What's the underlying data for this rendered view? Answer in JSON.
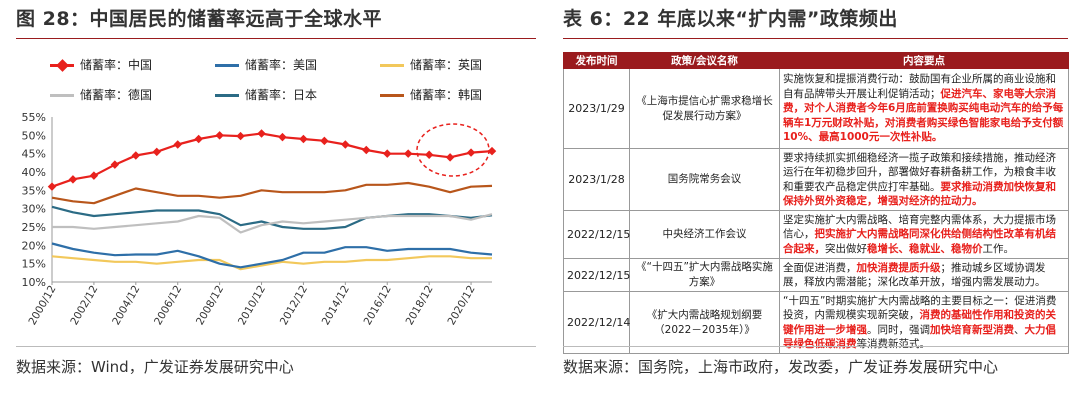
{
  "left_panel": {
    "title": "图 28：中国居民的储蓄率远高于全球水平",
    "source": "数据来源：Wind，广发证券发展研究中心"
  },
  "right_panel": {
    "title": "表 6：22 年底以来“扩内需”政策频出",
    "source": "数据来源：国务院，上海市政府，发改委，广发证券发展研究中心",
    "table_headers": [
      "发布时间",
      "政策/会议名称",
      "内容要点"
    ],
    "rows": [
      {
        "date": "2023/1/29",
        "policy": "《上海市提信心扩需求稳增长促发展行动方案》",
        "content_normal": "实施恢复和提振消费行动：鼓励国有企业所属的商业设施和自有品牌带头开展让利促销活动；",
        "content_highlight": "促进汽车、家电等大宗消费，对个人消费者今年6月底前置换购买纯电动汽车的给予每辆车1万元财政补贴，对消费者购买绿色智能家电给予支付额10%、最高1000元一次性补贴。",
        "content_after": ""
      },
      {
        "date": "2023/1/28",
        "policy": "国务院常务会议",
        "content_normal": "要求持续抓实抓细稳经济一揽子政策和接续措施，推动经济运行在年初稳步回升，部署做好春耕备耕工作，为粮食丰收和重要农产品稳定供应打牢基础。",
        "content_highlight": "要求推动消费加快恢复和保持外贸外资稳定，增强对经济的拉动力。",
        "content_after": ""
      },
      {
        "date": "2022/12/15",
        "policy": "中央经济工作会议",
        "content_normal": "坚定实施扩大内需战略、培育完整内需体系，大力提振市场信心，",
        "content_highlight": "把实施扩大内需战略同深化供给侧结构性改革有机结合起来，",
        "content_after": "突出做好",
        "content_highlight2": "稳增长、稳就业、稳物价",
        "content_after2": "工作。"
      },
      {
        "date": "2022/12/15",
        "policy": "《“十四五”扩大内需战略实施方案》",
        "content_normal": "全面促进消费，",
        "content_highlight": "加快消费提质升级",
        "content_after": "；推动城乡区域协调发展，释放内需潜能；深化改革开放，增强内需发展动力。"
      },
      {
        "date": "2022/12/14",
        "policy": "《扩大内需战略规划纲要（2022－2035年）》",
        "content_normal": "“十四五”时期实施扩大内需战略的主要目标之一：促进消费投资，内需规模实现新突破，",
        "content_highlight": "消费的基础性作用和投资的关键作用进一步增强",
        "content_after": "。同时，强调",
        "content_highlight2": "加快培育新型消费",
        "content_mid": "、",
        "content_highlight3": "大力倡导绿色低碳消费",
        "content_after2": "等消费新范式。"
      }
    ]
  },
  "chart_data": {
    "type": "line",
    "title": "",
    "xlabel": "",
    "ylabel": "",
    "ylim": [
      10,
      55
    ],
    "yticks": [
      "10%",
      "15%",
      "20%",
      "25%",
      "30%",
      "35%",
      "40%",
      "45%",
      "50%",
      "55%"
    ],
    "xticks": [
      "2000/12",
      "2002/12",
      "2004/12",
      "2006/12",
      "2008/12",
      "2010/12",
      "2012/12",
      "2014/12",
      "2016/12",
      "2018/12",
      "2020/12"
    ],
    "x": [
      2000,
      2001,
      2002,
      2003,
      2004,
      2005,
      2006,
      2007,
      2008,
      2009,
      2010,
      2011,
      2012,
      2013,
      2014,
      2015,
      2016,
      2017,
      2018,
      2019,
      2020,
      2021
    ],
    "series": [
      {
        "name": "储蓄率：中国",
        "color": "#e8211d",
        "marker": true,
        "values": [
          36,
          38,
          39,
          42,
          44.5,
          45.5,
          47.5,
          49,
          50,
          49.8,
          50.5,
          49.5,
          49,
          48.5,
          47.5,
          46,
          45,
          45,
          44.7,
          44,
          45.3,
          45.7
        ]
      },
      {
        "name": "储蓄率：美国",
        "color": "#2e6fa8",
        "marker": false,
        "values": [
          20.5,
          19,
          18,
          17.3,
          17.5,
          17.5,
          18.5,
          17,
          15,
          14,
          15,
          16,
          18,
          18,
          19.5,
          19.5,
          18.5,
          19,
          19,
          19,
          18,
          17.5
        ]
      },
      {
        "name": "储蓄率：英国",
        "color": "#f2c85b",
        "marker": false,
        "values": [
          17,
          16.5,
          16,
          15.5,
          15.5,
          15,
          15.5,
          16,
          16,
          13.5,
          14.5,
          15.5,
          15,
          15.5,
          15.5,
          16,
          16,
          16.5,
          17,
          17,
          16.5,
          16.5
        ]
      },
      {
        "name": "储蓄率：德国",
        "color": "#bfbfbf",
        "marker": false,
        "values": [
          25,
          25,
          24.5,
          25,
          25.5,
          26,
          26.5,
          28,
          27.5,
          23.5,
          25.5,
          26.5,
          26,
          26.5,
          27,
          27.5,
          28,
          28,
          28,
          28,
          27,
          28.5
        ]
      },
      {
        "name": "储蓄率：日本",
        "color": "#2b6b85",
        "marker": false,
        "values": [
          30.5,
          29,
          28,
          28.5,
          29,
          29.5,
          29.5,
          29.5,
          28.5,
          25.5,
          26.5,
          25,
          24.5,
          24.5,
          25,
          27.5,
          28,
          28.5,
          28.5,
          28,
          27.5,
          28.2
        ]
      },
      {
        "name": "储蓄率：韩国",
        "color": "#b8561b",
        "marker": false,
        "values": [
          33,
          32,
          31.5,
          33.5,
          35.5,
          34.5,
          33.5,
          33.5,
          33,
          33.5,
          35,
          34.5,
          34.5,
          34.5,
          35,
          36.5,
          36.5,
          37,
          36,
          34.5,
          36,
          36.2
        ]
      }
    ],
    "legend_placement": "top",
    "grid": false
  }
}
